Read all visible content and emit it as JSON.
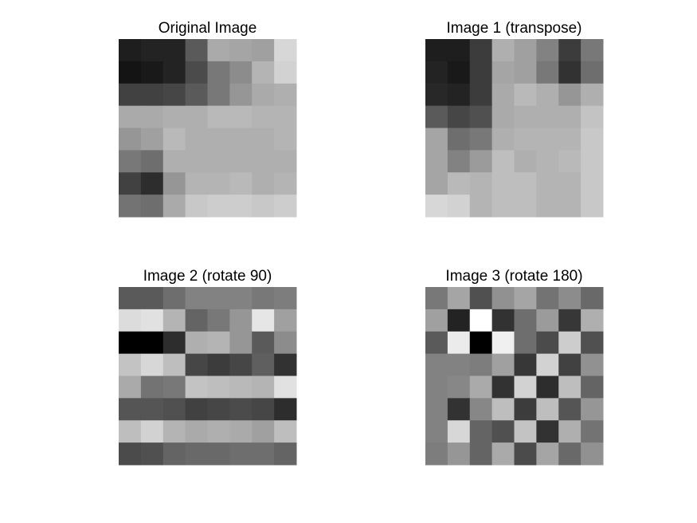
{
  "chart_data": [
    {
      "type": "image",
      "title": "Original Image",
      "colormap": "gray",
      "clim": [
        0,
        255
      ],
      "values": [
        [
          30,
          35,
          35,
          90,
          170,
          165,
          160,
          215
        ],
        [
          20,
          25,
          35,
          75,
          120,
          140,
          180,
          210
        ],
        [
          65,
          65,
          70,
          90,
          120,
          150,
          170,
          175
        ],
        [
          170,
          170,
          175,
          175,
          185,
          185,
          180,
          180
        ],
        [
          150,
          160,
          185,
          175,
          175,
          175,
          175,
          180
        ],
        [
          120,
          110,
          175,
          175,
          175,
          175,
          175,
          175
        ],
        [
          65,
          45,
          150,
          180,
          180,
          185,
          175,
          180
        ],
        [
          115,
          110,
          170,
          200,
          205,
          205,
          200,
          205
        ]
      ]
    },
    {
      "type": "image",
      "title": "Image 1 (transpose)",
      "colormap": "gray",
      "clim": [
        0,
        255
      ],
      "values": [
        [
          30,
          30,
          60,
          175,
          160,
          130,
          60,
          120
        ],
        [
          35,
          25,
          60,
          165,
          160,
          120,
          50,
          110
        ],
        [
          40,
          35,
          60,
          170,
          185,
          175,
          150,
          175
        ],
        [
          90,
          70,
          80,
          170,
          175,
          175,
          175,
          195
        ],
        [
          165,
          110,
          120,
          175,
          180,
          180,
          180,
          200
        ],
        [
          165,
          130,
          155,
          190,
          175,
          180,
          185,
          200
        ],
        [
          165,
          185,
          180,
          190,
          190,
          180,
          180,
          200
        ],
        [
          215,
          210,
          180,
          190,
          190,
          180,
          180,
          200
        ]
      ]
    },
    {
      "type": "image",
      "title": "Image 2 (rotate 90)",
      "colormap": "gray",
      "clim": [
        0,
        255
      ],
      "values": [
        [
          90,
          90,
          110,
          130,
          130,
          130,
          120,
          125
        ],
        [
          220,
          225,
          180,
          100,
          120,
          150,
          230,
          160
        ],
        [
          0,
          0,
          45,
          175,
          180,
          150,
          90,
          140
        ],
        [
          195,
          215,
          190,
          70,
          60,
          70,
          95,
          50
        ],
        [
          170,
          115,
          120,
          195,
          190,
          185,
          180,
          225
        ],
        [
          85,
          85,
          80,
          65,
          70,
          75,
          70,
          45
        ],
        [
          190,
          210,
          180,
          170,
          175,
          170,
          160,
          190
        ],
        [
          75,
          80,
          100,
          105,
          105,
          110,
          110,
          100
        ]
      ]
    },
    {
      "type": "image",
      "title": "Image 3 (rotate 180)",
      "colormap": "gray",
      "clim": [
        0,
        255
      ],
      "values": [
        [
          120,
          165,
          80,
          145,
          165,
          115,
          140,
          105
        ],
        [
          160,
          35,
          255,
          50,
          110,
          155,
          55,
          175
        ],
        [
          90,
          235,
          0,
          240,
          110,
          75,
          205,
          80
        ],
        [
          130,
          130,
          125,
          160,
          55,
          210,
          65,
          145
        ],
        [
          130,
          135,
          170,
          50,
          210,
          45,
          190,
          100
        ],
        [
          130,
          50,
          135,
          190,
          60,
          190,
          85,
          150
        ],
        [
          130,
          215,
          100,
          80,
          195,
          50,
          175,
          115
        ],
        [
          125,
          150,
          100,
          170,
          75,
          165,
          105,
          145
        ]
      ]
    }
  ]
}
